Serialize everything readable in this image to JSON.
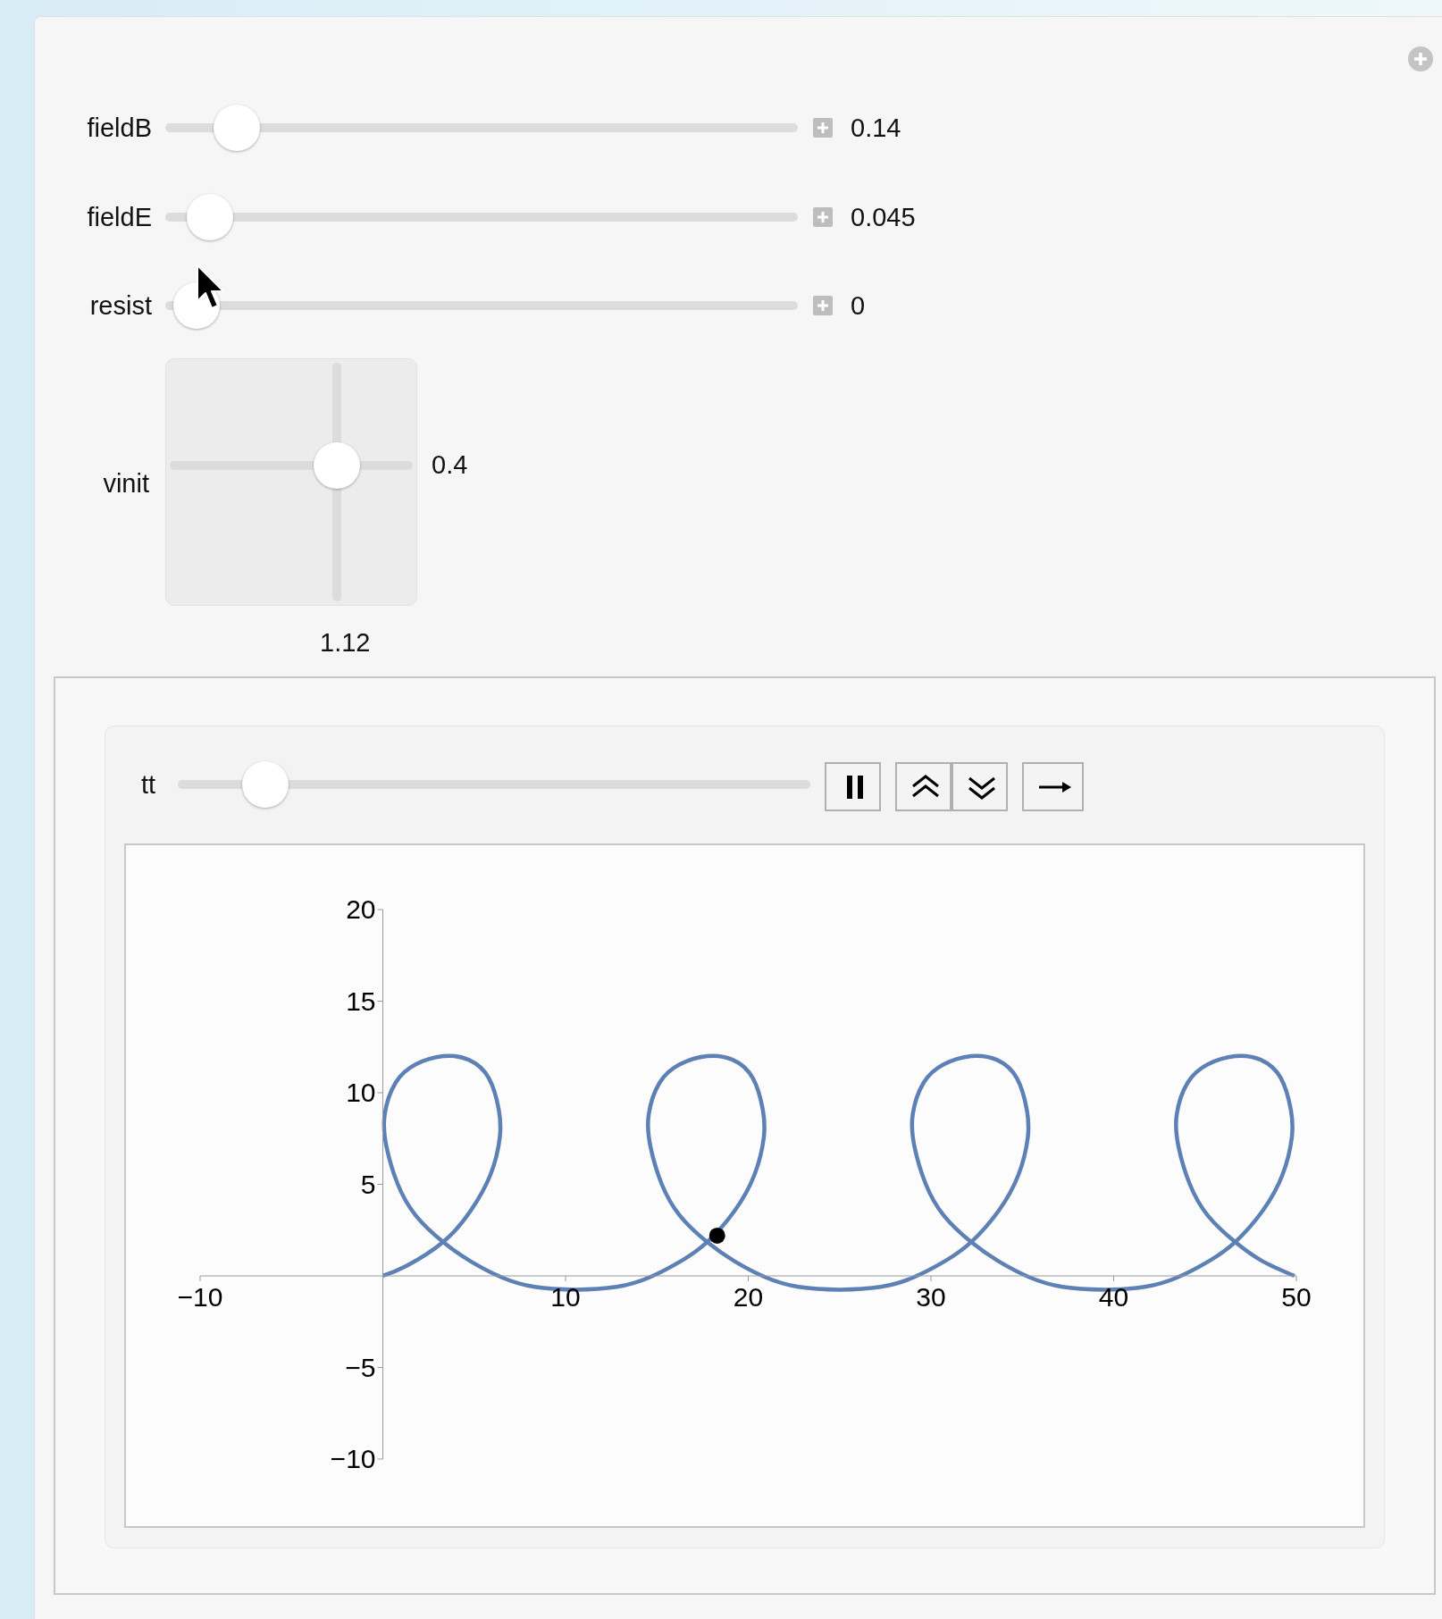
{
  "chart_data": {
    "type": "line",
    "annotations": [
      "fieldB",
      "0.14",
      "fieldE",
      "0.045",
      "resist",
      "0",
      "vinit",
      "0.4",
      "1.12",
      "tt"
    ],
    "xlim": [
      -10,
      50
    ],
    "ylim": [
      -10,
      20
    ],
    "xticks": [
      {
        "value": -10,
        "label": "−10"
      },
      10,
      20,
      30,
      40,
      50
    ],
    "yticks": [
      {
        "value": -10,
        "label": "−10"
      },
      {
        "value": -5,
        "label": "−5"
      },
      5,
      10,
      15,
      20
    ],
    "series": [
      {
        "color": "#5e81b5",
        "x": [
          0,
          1.3,
          3.3,
          4.8,
          5.9,
          6.4,
          6.35,
          5.8,
          4.7,
          3.3,
          1.8,
          0.7,
          0.1,
          0.2,
          0.8,
          1.8,
          3.3,
          4.8,
          6.55,
          8.3,
          10.55,
          12.8,
          14.55,
          16.3,
          17.75,
          19.25,
          20.35,
          20.85,
          20.8,
          20.25,
          19.15,
          17.75,
          16.25,
          15.15,
          14.55,
          14.65,
          15.25,
          16.25,
          17.75,
          19.25,
          21.0,
          22.75,
          25.0,
          27.25,
          29.0,
          30.75,
          32.2,
          33.7,
          34.8,
          35.3,
          35.25,
          34.7,
          33.6,
          32.2,
          30.7,
          29.6,
          29.0,
          29.1,
          29.7,
          30.7,
          32.2,
          33.7,
          35.45,
          37.2,
          39.45,
          41.7,
          43.45,
          45.2,
          46.65,
          48.15,
          49.25,
          49.75,
          49.7,
          49.15,
          48.05,
          46.65,
          45.15,
          44.05,
          43.45,
          43.55,
          44.15,
          45.15,
          46.65,
          48.15,
          49.9
        ],
        "values": [
          0,
          0.55,
          1.85,
          3.55,
          5.55,
          7.55,
          9.05,
          10.8,
          11.8,
          12.0,
          11.55,
          10.55,
          8.8,
          7.05,
          5.05,
          3.3,
          1.85,
          0.8,
          -0.1,
          -0.6,
          -0.75,
          -0.6,
          -0.1,
          0.8,
          1.85,
          3.55,
          5.55,
          7.55,
          9.05,
          10.8,
          11.8,
          12.0,
          11.55,
          10.55,
          8.8,
          7.05,
          5.05,
          3.3,
          1.85,
          0.8,
          -0.1,
          -0.6,
          -0.75,
          -0.6,
          -0.1,
          0.8,
          1.85,
          3.55,
          5.55,
          7.55,
          9.05,
          10.8,
          11.8,
          12.0,
          11.55,
          10.55,
          8.8,
          7.05,
          5.05,
          3.3,
          1.85,
          0.8,
          -0.1,
          -0.6,
          -0.75,
          -0.6,
          -0.1,
          0.8,
          1.85,
          3.55,
          5.55,
          7.55,
          9.05,
          10.8,
          11.8,
          12.0,
          11.55,
          10.55,
          8.8,
          7.05,
          5.05,
          3.3,
          1.85,
          0.8,
          0
        ]
      },
      {
        "type": "scatter",
        "color": "#000000",
        "marker": "circle",
        "x": [
          18.3
        ],
        "values": [
          2.2
        ]
      }
    ]
  }
}
